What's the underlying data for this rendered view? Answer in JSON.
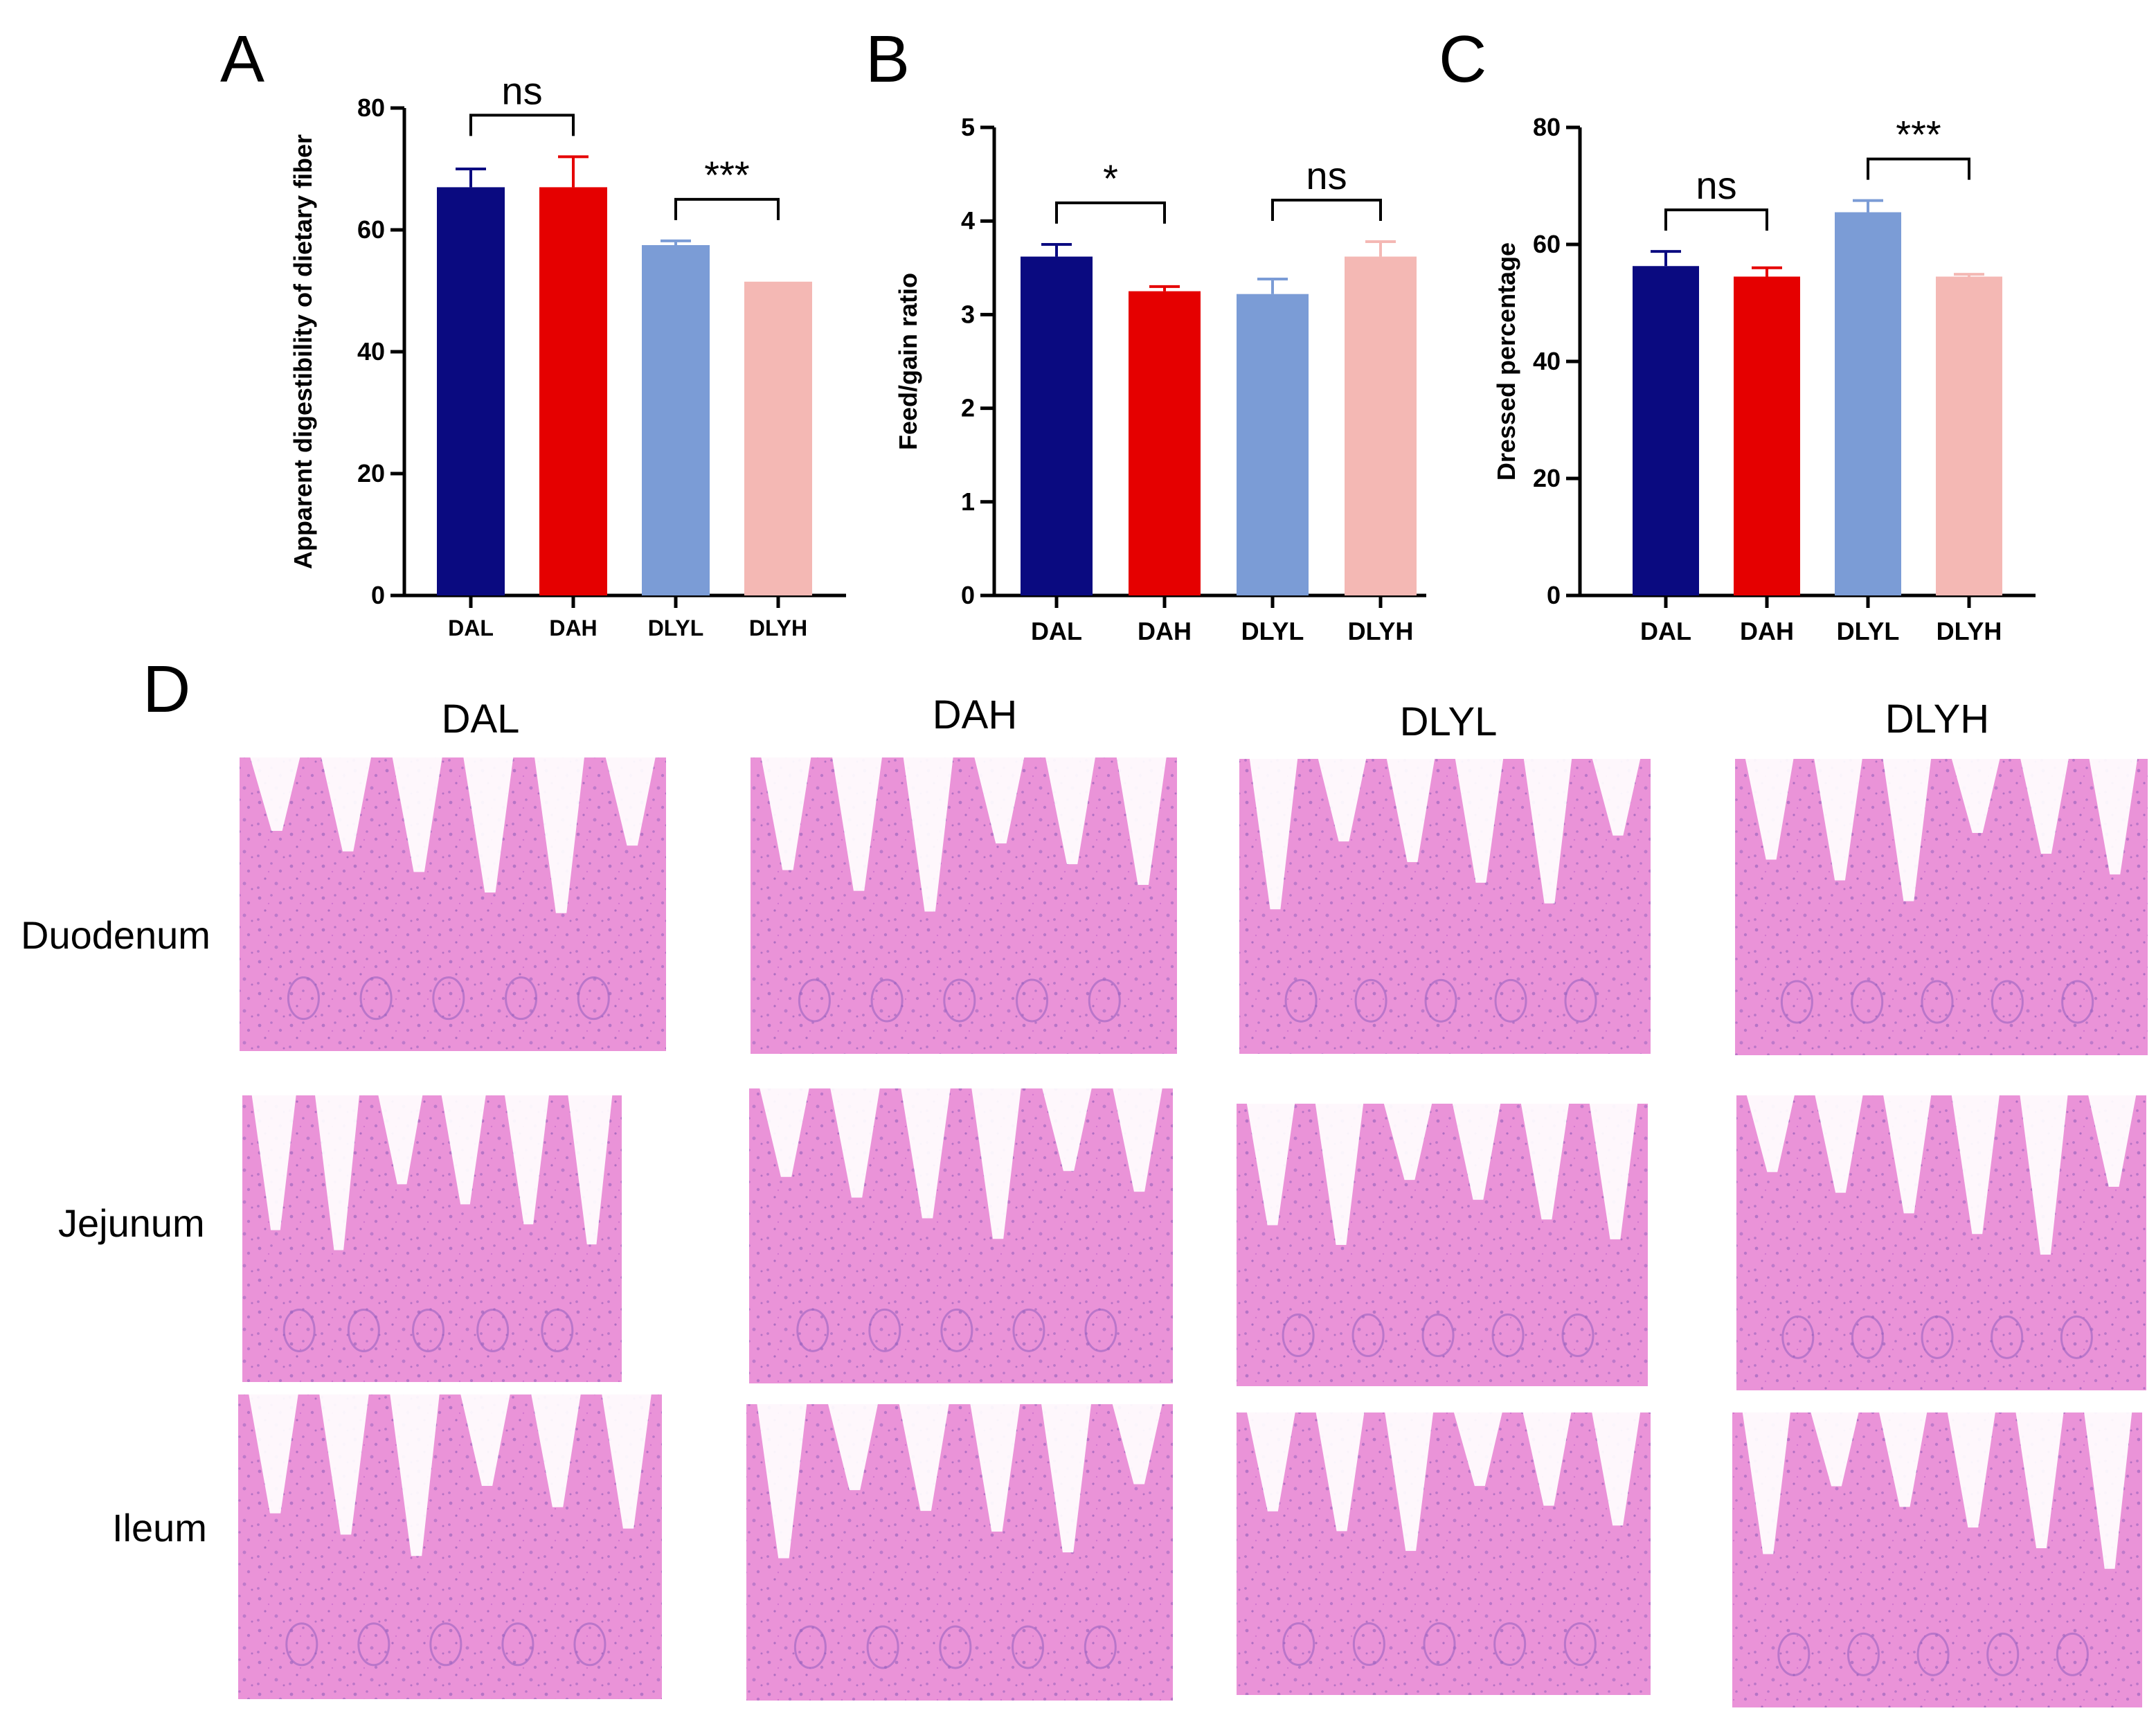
{
  "chart_data": [
    {
      "panel": "A",
      "type": "bar",
      "ylabel": "Apparent digestibility of dietary fiber",
      "xlabel": "",
      "ylim": [
        0,
        80
      ],
      "yticks": [
        "0",
        "20",
        "40",
        "60",
        "80"
      ],
      "categories": [
        "DAL",
        "DAH",
        "DLYL",
        "DLYH"
      ],
      "values": [
        67,
        67,
        57.5,
        51.5
      ],
      "errors": [
        3,
        5,
        0.7,
        0
      ],
      "colors": [
        "#0a0a80",
        "#e50000",
        "#7b9cd6",
        "#f4b8b4"
      ],
      "significance": [
        {
          "from": 0,
          "to": 1,
          "label": "ns"
        },
        {
          "from": 2,
          "to": 3,
          "label": "***"
        }
      ]
    },
    {
      "panel": "B",
      "type": "bar",
      "ylabel": "Feed/gain ratio",
      "xlabel": "",
      "ylim": [
        0,
        5
      ],
      "yticks": [
        "0",
        "1",
        "2",
        "3",
        "4",
        "5"
      ],
      "categories": [
        "DAL",
        "DAH",
        "DLYL",
        "DLYH"
      ],
      "values": [
        3.62,
        3.25,
        3.22,
        3.62
      ],
      "errors": [
        0.13,
        0.05,
        0.16,
        0.16
      ],
      "colors": [
        "#0a0a80",
        "#e50000",
        "#7b9cd6",
        "#f4b8b4"
      ],
      "significance": [
        {
          "from": 0,
          "to": 1,
          "label": "*"
        },
        {
          "from": 2,
          "to": 3,
          "label": "ns"
        }
      ]
    },
    {
      "panel": "C",
      "type": "bar",
      "ylabel": "Dressed percentage",
      "xlabel": "",
      "ylim": [
        0,
        80
      ],
      "yticks": [
        "0",
        "20",
        "40",
        "60",
        "80"
      ],
      "categories": [
        "DAL",
        "DAH",
        "DLYL",
        "DLYH"
      ],
      "values": [
        56.3,
        54.5,
        65.5,
        54.5
      ],
      "errors": [
        2.5,
        1.5,
        2,
        0.4
      ],
      "colors": [
        "#0a0a80",
        "#e50000",
        "#7b9cd6",
        "#f4b8b4"
      ],
      "significance": [
        {
          "from": 0,
          "to": 1,
          "label": "ns"
        },
        {
          "from": 2,
          "to": 3,
          "label": "***"
        }
      ]
    }
  ],
  "histology": {
    "panel": "D",
    "columns": [
      "DAL",
      "DAH",
      "DLYL",
      "DLYH"
    ],
    "rows": [
      "Duodenum",
      "Jejunum",
      "Ileum"
    ],
    "tissue_color": "#e98bd6",
    "nuclei_color": "#8a5ab8",
    "lumen_color": "#ffffff"
  }
}
